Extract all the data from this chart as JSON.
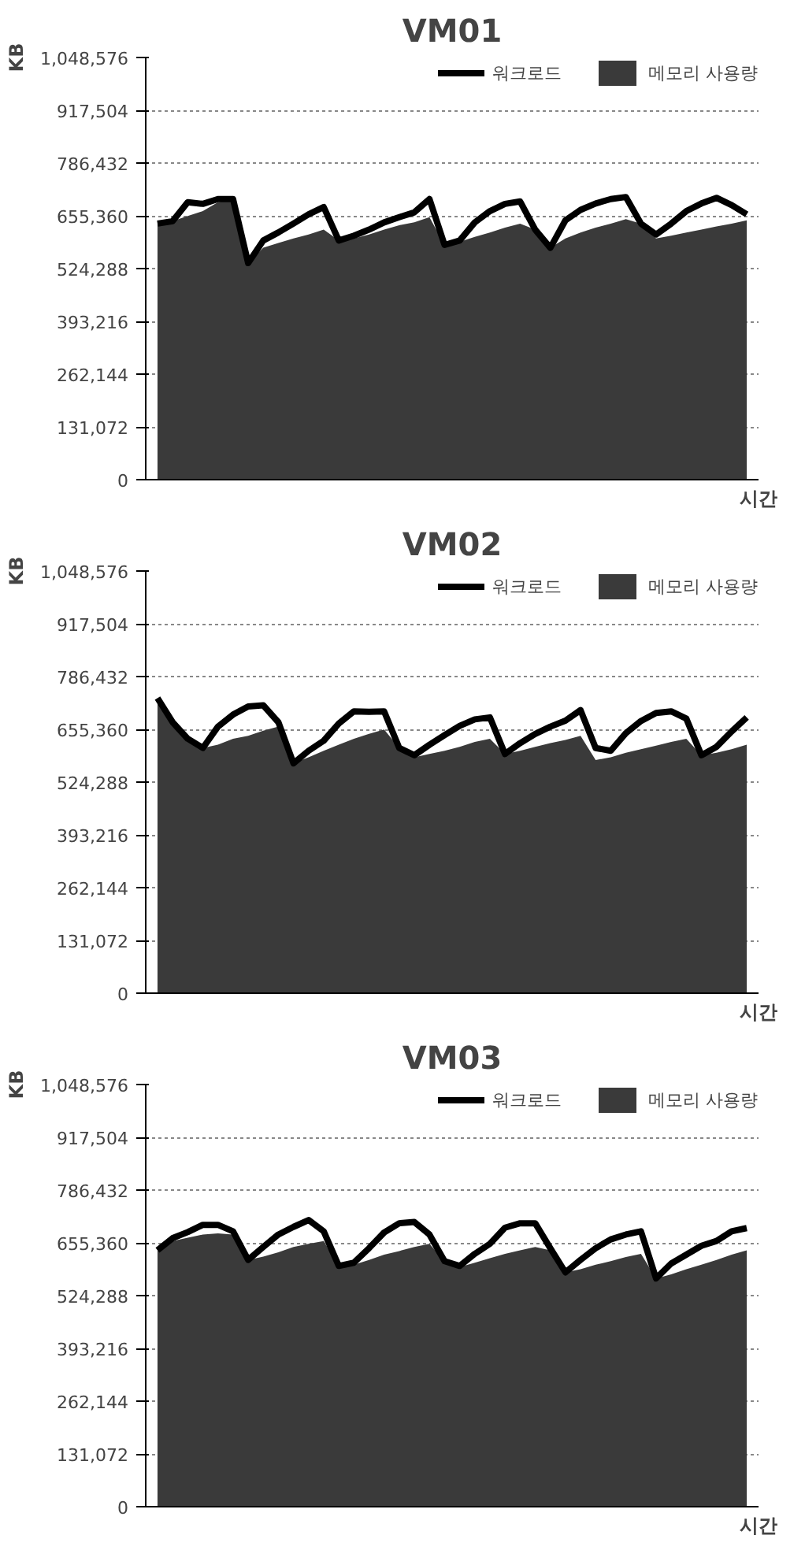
{
  "chart_data": [
    {
      "type": "area",
      "title": "VM01",
      "ylabel": "KB",
      "xlabel": "시간",
      "categories": [
        null,
        null,
        null,
        null,
        null,
        null,
        null,
        null,
        null,
        null,
        null,
        null,
        null,
        null,
        null,
        null,
        null,
        null,
        null,
        null,
        null,
        null,
        null,
        null,
        null,
        null,
        null,
        null,
        null,
        null,
        null,
        null,
        null,
        null,
        null,
        null,
        null,
        null,
        null,
        null
      ],
      "series": [
        {
          "name": "워크로드",
          "type": "line",
          "color": "#000000",
          "values": [
            636000,
            642000,
            689000,
            685000,
            697000,
            697000,
            538000,
            594000,
            614000,
            636000,
            659000,
            677000,
            594000,
            606000,
            621000,
            639000,
            652000,
            664000,
            697000,
            583000,
            594000,
            639000,
            667000,
            685000,
            691000,
            621000,
            576000,
            644000,
            670000,
            686000,
            697000,
            702000,
            636000,
            609000,
            636000,
            667000,
            686000,
            700000,
            682000,
            659000
          ]
        },
        {
          "name": "메모리 사용량",
          "color": "#3a3a3a",
          "values": [
            636000,
            642000,
            655000,
            667000,
            689000,
            697000,
            538000,
            576000,
            588000,
            599000,
            609000,
            621000,
            594000,
            599000,
            609000,
            621000,
            632000,
            639000,
            652000,
            583000,
            591000,
            603000,
            614000,
            626000,
            636000,
            621000,
            576000,
            599000,
            614000,
            626000,
            636000,
            647000,
            636000,
            599000,
            606000,
            614000,
            621000,
            629000,
            636000,
            644000
          ]
        }
      ],
      "ylim": [
        0,
        1048576
      ],
      "yticks": [
        {
          "value": 0,
          "label": "0"
        },
        {
          "value": 131072,
          "label": "131,072"
        },
        {
          "value": 262144,
          "label": "262,144"
        },
        {
          "value": 393216,
          "label": "393,216"
        },
        {
          "value": 524288,
          "label": "524,288"
        },
        {
          "value": 655360,
          "label": "655,360"
        },
        {
          "value": 786432,
          "label": "786,432"
        },
        {
          "value": 917504,
          "label": "917,504"
        },
        {
          "value": 1048576,
          "label": "1,048,576"
        }
      ],
      "grid": "y",
      "legend": "top",
      "tick_labels": "y"
    },
    {
      "type": "area",
      "title": "VM02",
      "ylabel": "KB",
      "xlabel": "시간",
      "categories": [
        null,
        null,
        null,
        null,
        null,
        null,
        null,
        null,
        null,
        null,
        null,
        null,
        null,
        null,
        null,
        null,
        null,
        null,
        null,
        null,
        null,
        null,
        null,
        null,
        null,
        null,
        null,
        null,
        null,
        null,
        null,
        null,
        null,
        null,
        null,
        null,
        null,
        null,
        null,
        null
      ],
      "series": [
        {
          "name": "워크로드",
          "type": "line",
          "color": "#000000",
          "values": [
            733000,
            673000,
            632000,
            609000,
            662000,
            692000,
            712000,
            715000,
            673000,
            571000,
            602000,
            627000,
            670000,
            700000,
            699000,
            700000,
            609000,
            591000,
            617000,
            641000,
            664000,
            680000,
            685000,
            594000,
            621000,
            644000,
            662000,
            677000,
            703000,
            609000,
            602000,
            646000,
            676000,
            696000,
            700000,
            682000,
            591000,
            612000,
            650000,
            685000
          ]
        },
        {
          "name": "메모리 사용량",
          "color": "#3a3a3a",
          "values": [
            733000,
            673000,
            632000,
            609000,
            617000,
            632000,
            639000,
            652000,
            662000,
            571000,
            586000,
            602000,
            617000,
            632000,
            644000,
            655000,
            609000,
            586000,
            594000,
            602000,
            612000,
            624000,
            632000,
            594000,
            602000,
            612000,
            621000,
            629000,
            639000,
            579000,
            586000,
            597000,
            606000,
            615000,
            624000,
            632000,
            591000,
            597000,
            606000,
            617000
          ]
        }
      ],
      "ylim": [
        0,
        1048576
      ],
      "yticks": [
        {
          "value": 0,
          "label": "0"
        },
        {
          "value": 131072,
          "label": "131,072"
        },
        {
          "value": 262144,
          "label": "262,144"
        },
        {
          "value": 393216,
          "label": "393,216"
        },
        {
          "value": 524288,
          "label": "524,288"
        },
        {
          "value": 655360,
          "label": "655,360"
        },
        {
          "value": 786432,
          "label": "786,432"
        },
        {
          "value": 917504,
          "label": "917,504"
        },
        {
          "value": 1048576,
          "label": "1,048,576"
        }
      ],
      "grid": "y",
      "legend": "top",
      "tick_labels": "y"
    },
    {
      "type": "area",
      "title": "VM03",
      "ylabel": "KB",
      "xlabel": "시간",
      "categories": [
        null,
        null,
        null,
        null,
        null,
        null,
        null,
        null,
        null,
        null,
        null,
        null,
        null,
        null,
        null,
        null,
        null,
        null,
        null,
        null,
        null,
        null,
        null,
        null,
        null,
        null,
        null,
        null,
        null,
        null,
        null,
        null,
        null,
        null,
        null,
        null,
        null,
        null,
        null,
        null
      ],
      "series": [
        {
          "name": "워크로드",
          "type": "line",
          "color": "#000000",
          "values": [
            637000,
            667000,
            682000,
            700000,
            700000,
            684000,
            613000,
            645000,
            676000,
            695000,
            712000,
            684000,
            598000,
            606000,
            642000,
            681000,
            704000,
            707000,
            676000,
            610000,
            598000,
            628000,
            653000,
            693000,
            704000,
            704000,
            642000,
            582000,
            613000,
            642000,
            664000,
            676000,
            684000,
            567000,
            604000,
            626000,
            648000,
            660000,
            684000,
            692000
          ]
        },
        {
          "name": "메모리 사용량",
          "color": "#3a3a3a",
          "values": [
            637000,
            660000,
            668000,
            676000,
            679000,
            676000,
            613000,
            621000,
            632000,
            645000,
            653000,
            660000,
            598000,
            601000,
            613000,
            626000,
            635000,
            645000,
            653000,
            610000,
            595000,
            606000,
            617000,
            628000,
            637000,
            645000,
            637000,
            582000,
            590000,
            601000,
            610000,
            620000,
            628000,
            567000,
            577000,
            590000,
            601000,
            613000,
            626000,
            637000
          ]
        }
      ],
      "ylim": [
        0,
        1048576
      ],
      "yticks": [
        {
          "value": 0,
          "label": "0"
        },
        {
          "value": 131072,
          "label": "131,072"
        },
        {
          "value": 262144,
          "label": "262,144"
        },
        {
          "value": 393216,
          "label": "393,216"
        },
        {
          "value": 524288,
          "label": "524,288"
        },
        {
          "value": 655360,
          "label": "655,360"
        },
        {
          "value": 786432,
          "label": "786,432"
        },
        {
          "value": 917504,
          "label": "917,504"
        },
        {
          "value": 1048576,
          "label": "1,048,576"
        }
      ],
      "grid": "y",
      "legend": "top",
      "tick_labels": "y"
    }
  ]
}
